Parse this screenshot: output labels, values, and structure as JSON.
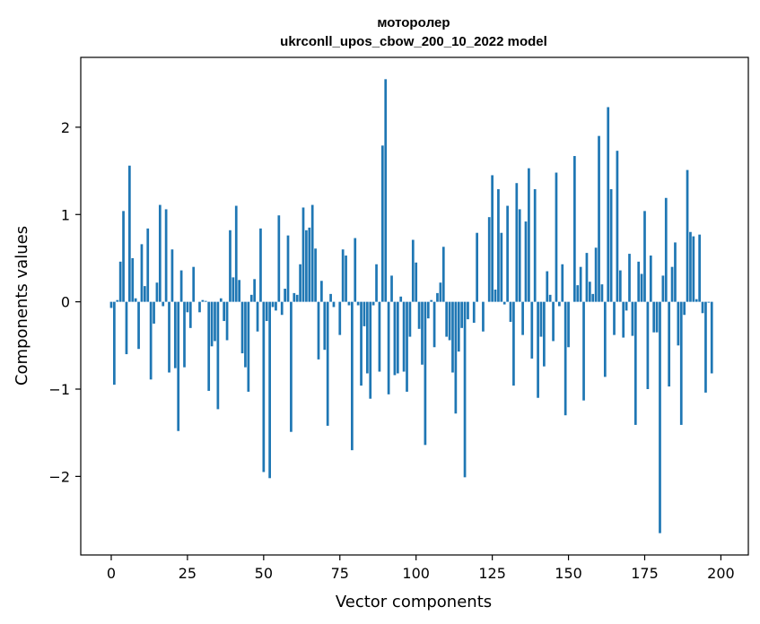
{
  "chart_data": {
    "type": "bar",
    "title_line1": "мотоpoлер",
    "title_line2": "ukrconll_upos_cbow_200_10_2022 model",
    "xlabel": "Vector components",
    "ylabel": "Components values",
    "xlim": [
      -10,
      209
    ],
    "ylim": [
      -2.9,
      2.8
    ],
    "xticks": [
      0,
      25,
      50,
      75,
      100,
      125,
      150,
      175,
      200
    ],
    "yticks": [
      -2,
      -1,
      0,
      1,
      2
    ],
    "ytick_labels": [
      "−2",
      "−1",
      "0",
      "1",
      "2"
    ],
    "grid": false,
    "bar_color": "#1f77b4",
    "values": [
      -0.07,
      -0.95,
      0.02,
      0.46,
      1.04,
      -0.6,
      1.56,
      0.5,
      0.04,
      -0.54,
      0.66,
      0.18,
      0.84,
      -0.89,
      -0.25,
      0.22,
      1.11,
      -0.05,
      1.06,
      -0.81,
      0.6,
      -0.76,
      -1.48,
      0.36,
      -0.75,
      -0.12,
      -0.3,
      0.4,
      0.0,
      -0.12,
      0.02,
      0.01,
      -1.02,
      -0.51,
      -0.45,
      -1.23,
      0.04,
      -0.22,
      -0.44,
      0.82,
      0.28,
      1.1,
      0.25,
      -0.59,
      -0.75,
      -1.03,
      0.08,
      0.26,
      -0.34,
      0.84,
      -1.95,
      -0.22,
      -2.02,
      -0.06,
      -0.1,
      0.99,
      -0.15,
      0.15,
      0.76,
      -1.49,
      0.1,
      0.08,
      0.43,
      1.08,
      0.82,
      0.85,
      1.11,
      0.61,
      -0.66,
      0.24,
      -0.55,
      -1.42,
      0.09,
      -0.06,
      0.0,
      -0.38,
      0.6,
      0.53,
      -0.04,
      -1.7,
      0.73,
      -0.04,
      -0.96,
      -0.28,
      -0.82,
      -1.11,
      -0.04,
      0.43,
      -0.8,
      1.79,
      2.55,
      -1.06,
      0.3,
      -0.84,
      -0.82,
      0.06,
      -0.8,
      -1.03,
      -0.4,
      0.71,
      0.45,
      -0.31,
      -0.72,
      -1.64,
      -0.19,
      0.02,
      -0.52,
      0.1,
      0.22,
      0.63,
      -0.4,
      -0.44,
      -0.81,
      -1.28,
      -0.57,
      -0.3,
      -2.01,
      -0.2,
      0.0,
      -0.24,
      0.79,
      0.0,
      -0.34,
      0.0,
      0.97,
      1.45,
      0.14,
      1.29,
      0.79,
      -0.03,
      1.1,
      -0.23,
      -0.96,
      1.36,
      1.06,
      -0.38,
      0.92,
      1.53,
      -0.65,
      1.29,
      -1.1,
      -0.4,
      -0.74,
      0.35,
      0.08,
      -0.45,
      1.48,
      -0.05,
      0.43,
      -1.3,
      -0.52,
      0.0,
      1.67,
      0.19,
      0.4,
      -1.13,
      0.56,
      0.23,
      0.09,
      0.62,
      1.9,
      0.2,
      -0.86,
      2.23,
      1.29,
      -0.38,
      1.73,
      0.36,
      -0.41,
      -0.1,
      0.55,
      -0.39,
      -1.41,
      0.46,
      0.32,
      1.04,
      -1.0,
      0.53,
      -0.35,
      -0.35,
      -2.65,
      0.3,
      1.19,
      -0.97,
      0.4,
      0.68,
      -0.5,
      -1.41,
      -0.15,
      1.51,
      0.8,
      0.75,
      0.03,
      0.77,
      -0.13,
      -1.04,
      -0.01,
      -0.82
    ]
  }
}
